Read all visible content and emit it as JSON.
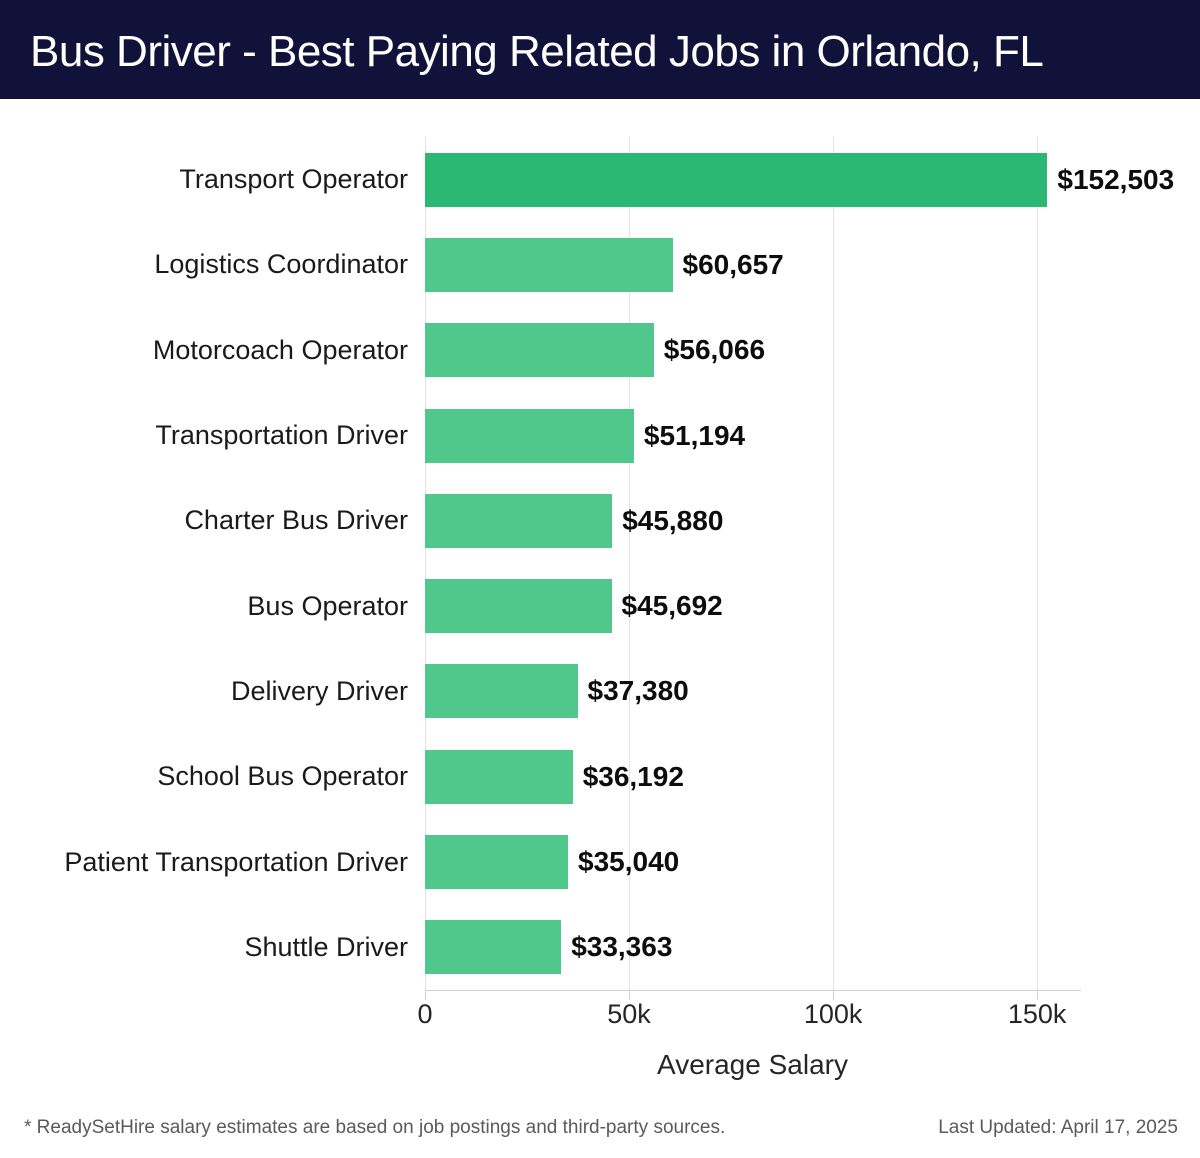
{
  "header": {
    "title": "Bus Driver - Best Paying Related Jobs in Orlando, FL",
    "background": "#11123a",
    "text_color": "#ffffff"
  },
  "chart_data": {
    "type": "bar",
    "orientation": "horizontal",
    "title": "Bus Driver - Best Paying Related Jobs in Orlando, FL",
    "categories": [
      "Transport Operator",
      "Logistics Coordinator",
      "Motorcoach Operator",
      "Transportation Driver",
      "Charter Bus Driver",
      "Bus Operator",
      "Delivery Driver",
      "School Bus Operator",
      "Patient Transportation Driver",
      "Shuttle Driver"
    ],
    "values": [
      152503,
      60657,
      56066,
      51194,
      45880,
      45692,
      37380,
      36192,
      35040,
      33363
    ],
    "value_labels": [
      "$152,503",
      "$60,657",
      "$56,066",
      "$51,194",
      "$45,880",
      "$45,692",
      "$37,380",
      "$36,192",
      "$35,040",
      "$33,363"
    ],
    "xlabel": "Average Salary",
    "x_ticks": [
      0,
      50000,
      100000,
      150000
    ],
    "x_tick_labels": [
      "0",
      "50k",
      "100k",
      "150k"
    ],
    "xlim": [
      0,
      160500
    ],
    "grid": true,
    "legend": "none",
    "bar_color": "#51c88b",
    "highlight_color": "#2bb873",
    "highlight_index": 0
  },
  "footer": {
    "note": "* ReadySetHire salary estimates are based on job postings and third-party sources.",
    "updated": "Last Updated: April 17, 2025"
  }
}
